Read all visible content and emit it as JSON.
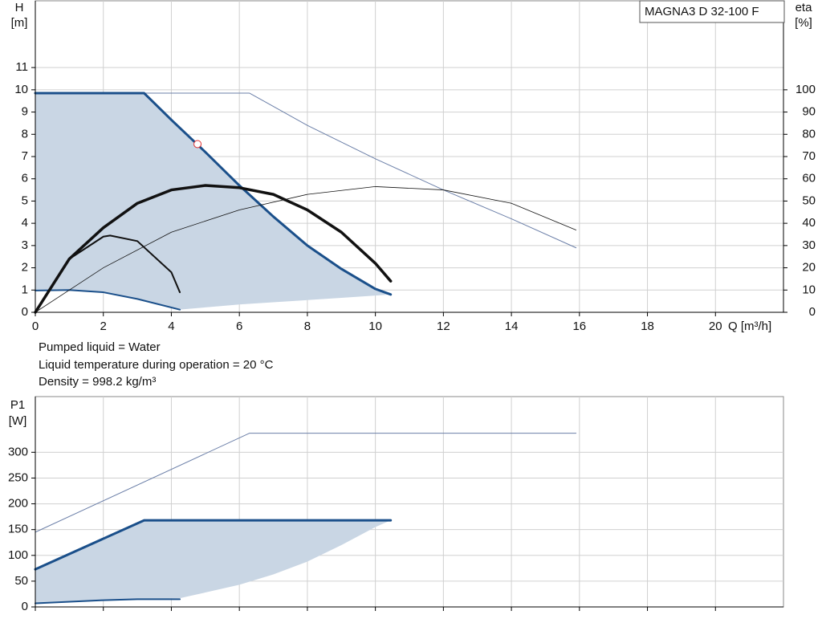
{
  "chart_data": [
    {
      "type": "line",
      "title": "MAGNA3 D 32-100 F",
      "ylabel": [
        "H",
        "[m]"
      ],
      "y2label": [
        "eta",
        "[%]"
      ],
      "xlabel": "Q [m³/h]",
      "xlim": [
        0,
        22
      ],
      "ylim": [
        0,
        14
      ],
      "y2lim": [
        0,
        140
      ],
      "xticks": [
        0,
        2,
        4,
        6,
        8,
        10,
        12,
        14,
        16,
        18,
        20
      ],
      "yticks": [
        0,
        1,
        2,
        3,
        4,
        5,
        6,
        7,
        8,
        9,
        10,
        11
      ],
      "y2ticks": [
        0,
        10,
        20,
        30,
        40,
        50,
        60,
        70,
        80,
        90,
        100
      ],
      "grid": true,
      "show_xtick_labels": true,
      "region": {
        "color": "#c9d6e4",
        "x": [
          0,
          3.2,
          4,
          5,
          6,
          7,
          8,
          9,
          10,
          10.45,
          9,
          8,
          7,
          6,
          5,
          4.25,
          3,
          2,
          1,
          0
        ],
        "values": [
          9.85,
          9.85,
          8.65,
          7.2,
          5.7,
          4.3,
          3.0,
          1.95,
          1.05,
          0.8,
          0.65,
          0.55,
          0.45,
          0.35,
          0.22,
          0.12,
          0.6,
          0.88,
          1.0,
          0.98
        ]
      },
      "series": [
        {
          "color": "#6b7fa8",
          "linewidth": 1,
          "x": [
            0,
            6.3,
            8,
            10,
            12,
            14,
            15.9
          ],
          "values": [
            9.85,
            9.85,
            8.4,
            6.9,
            5.5,
            4.2,
            2.9
          ]
        },
        {
          "color": "#1a4f8a",
          "linewidth": 3,
          "x": [
            0,
            3.2,
            4,
            5,
            6,
            7,
            8,
            9,
            10,
            10.45
          ],
          "values": [
            9.85,
            9.85,
            8.65,
            7.2,
            5.7,
            4.3,
            3.0,
            1.95,
            1.05,
            0.8
          ]
        },
        {
          "color": "#1a4f8a",
          "linewidth": 2,
          "x": [
            0,
            1,
            2,
            3,
            4.25
          ],
          "values": [
            0.98,
            1.0,
            0.9,
            0.6,
            0.12
          ]
        },
        {
          "color": "#111111",
          "linewidth": 0.8,
          "axis": "y2",
          "x": [
            0,
            2,
            4,
            6,
            8,
            10,
            12,
            14,
            15.9
          ],
          "values": [
            0,
            20,
            36,
            46,
            53,
            56.5,
            55,
            49,
            37
          ]
        },
        {
          "color": "#111111",
          "linewidth": 2,
          "axis": "y2",
          "x": [
            0,
            1,
            2,
            2.2,
            3,
            4,
            4.25
          ],
          "values": [
            0,
            24,
            34,
            34.5,
            32,
            18,
            9
          ]
        },
        {
          "color": "#111111",
          "linewidth": 3.5,
          "axis": "y2",
          "x": [
            0,
            0.5,
            1,
            2,
            3,
            4,
            5,
            6,
            7,
            8,
            9,
            10,
            10.45
          ],
          "values": [
            0,
            12,
            24,
            38,
            49,
            55,
            57,
            56,
            53,
            46,
            36,
            22,
            14
          ]
        }
      ],
      "marker": {
        "color": "#e03030",
        "x": 4.77,
        "y": 7.56
      }
    },
    {
      "type": "line",
      "ylabel": [
        "P1",
        "[W]"
      ],
      "xlim": [
        0,
        22
      ],
      "ylim": [
        0,
        408
      ],
      "xticks": [
        0,
        2,
        4,
        6,
        8,
        10,
        12,
        14,
        16,
        18,
        20
      ],
      "yticks": [
        0,
        50,
        100,
        150,
        200,
        250,
        300
      ],
      "grid": true,
      "show_xtick_labels": false,
      "region": {
        "color": "#c9d6e4",
        "x": [
          0,
          3.2,
          10.45,
          10,
          9,
          8,
          7,
          6,
          5,
          4.25,
          3,
          2,
          1,
          0
        ],
        "values": [
          73,
          168,
          168,
          155,
          120,
          88,
          63,
          43,
          28,
          17,
          15,
          13,
          10,
          7
        ]
      },
      "series": [
        {
          "color": "#6b7fa8",
          "linewidth": 1,
          "x": [
            0,
            6.3,
            15.9
          ],
          "values": [
            145,
            337,
            337
          ]
        },
        {
          "color": "#1a4f8a",
          "linewidth": 3,
          "x": [
            0,
            3.2,
            10.45
          ],
          "values": [
            73,
            168,
            168
          ]
        },
        {
          "color": "#1a4f8a",
          "linewidth": 2,
          "x": [
            0,
            2,
            3,
            4.25
          ],
          "values": [
            7,
            13,
            15,
            15
          ]
        }
      ]
    }
  ],
  "notes": [
    "Pumped liquid = Water",
    "Liquid temperature during operation = 20 °C",
    "Density = 998.2 kg/m³"
  ]
}
